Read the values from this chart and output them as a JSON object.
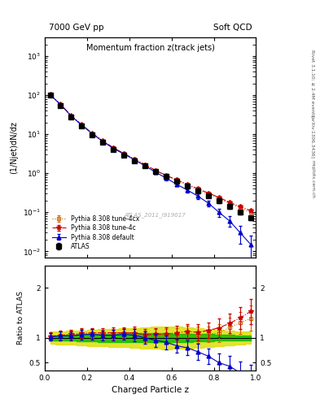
{
  "title_main": "Momentum fraction z(track jets)",
  "header_left": "7000 GeV pp",
  "header_right": "Soft QCD",
  "right_label1": "Rivet 3.1.10; ≥ 2.4M events",
  "right_label2": "[arXiv:1306.3436]",
  "right_label3": "mcplots.cern.ch",
  "watermark": "ATLAS_2011_I919017",
  "ylabel_main": "(1/Njet)dN/dz",
  "ylabel_ratio": "Ratio to ATLAS",
  "xlabel": "Charged Particle z",
  "xlim": [
    0,
    1.0
  ],
  "ylim_main": [
    0.007,
    3000
  ],
  "ylim_ratio": [
    0.35,
    2.45
  ],
  "ratio_yticks": [
    0.5,
    1.0,
    2.0
  ],
  "background_color": "#ffffff",
  "green_band_color": "#00bb00",
  "yellow_band_color": "#dddd00",
  "atlas_color": "#000000",
  "pythia_default_color": "#0000cc",
  "pythia_4c_color": "#cc0000",
  "pythia_4cx_color": "#cc6600",
  "atlas_x": [
    0.025,
    0.075,
    0.125,
    0.175,
    0.225,
    0.275,
    0.325,
    0.375,
    0.425,
    0.475,
    0.525,
    0.575,
    0.625,
    0.675,
    0.725,
    0.775,
    0.825,
    0.875,
    0.925,
    0.975
  ],
  "atlas_y": [
    100,
    55,
    28,
    16,
    9.5,
    6.2,
    4.1,
    2.9,
    2.1,
    1.55,
    1.1,
    0.82,
    0.62,
    0.46,
    0.36,
    0.27,
    0.2,
    0.14,
    0.1,
    0.072
  ],
  "atlas_yerr": [
    6,
    3.5,
    2,
    1.2,
    0.75,
    0.5,
    0.35,
    0.25,
    0.18,
    0.13,
    0.1,
    0.08,
    0.06,
    0.05,
    0.04,
    0.03,
    0.025,
    0.018,
    0.014,
    0.01
  ],
  "py_default_x": [
    0.025,
    0.075,
    0.125,
    0.175,
    0.225,
    0.275,
    0.325,
    0.375,
    0.425,
    0.475,
    0.525,
    0.575,
    0.625,
    0.675,
    0.725,
    0.775,
    0.825,
    0.875,
    0.925,
    0.975
  ],
  "py_default_y": [
    102,
    57,
    29,
    17,
    10.2,
    6.5,
    4.3,
    3.1,
    2.2,
    1.55,
    1.05,
    0.75,
    0.52,
    0.37,
    0.26,
    0.17,
    0.1,
    0.06,
    0.03,
    0.015
  ],
  "py_default_yerr": [
    6,
    3.5,
    2,
    1.2,
    0.75,
    0.5,
    0.35,
    0.25,
    0.18,
    0.13,
    0.1,
    0.08,
    0.06,
    0.05,
    0.04,
    0.03,
    0.025,
    0.018,
    0.014,
    0.01
  ],
  "py_4c_x": [
    0.025,
    0.075,
    0.125,
    0.175,
    0.225,
    0.275,
    0.325,
    0.375,
    0.425,
    0.475,
    0.525,
    0.575,
    0.625,
    0.675,
    0.725,
    0.775,
    0.825,
    0.875,
    0.925,
    0.975
  ],
  "py_4c_y": [
    103,
    58,
    30,
    17.5,
    10.5,
    6.8,
    4.5,
    3.2,
    2.3,
    1.65,
    1.18,
    0.88,
    0.68,
    0.52,
    0.4,
    0.31,
    0.24,
    0.18,
    0.14,
    0.11
  ],
  "py_4c_yerr": [
    6,
    3.5,
    2,
    1.2,
    0.75,
    0.5,
    0.35,
    0.25,
    0.18,
    0.13,
    0.1,
    0.08,
    0.06,
    0.05,
    0.04,
    0.03,
    0.025,
    0.018,
    0.014,
    0.01
  ],
  "py_4cx_x": [
    0.025,
    0.075,
    0.125,
    0.175,
    0.225,
    0.275,
    0.325,
    0.375,
    0.425,
    0.475,
    0.525,
    0.575,
    0.625,
    0.675,
    0.725,
    0.775,
    0.825,
    0.875,
    0.925,
    0.975
  ],
  "py_4cx_y": [
    102,
    57,
    29.5,
    17.2,
    10.3,
    6.6,
    4.4,
    3.15,
    2.25,
    1.6,
    1.15,
    0.85,
    0.65,
    0.5,
    0.38,
    0.29,
    0.22,
    0.17,
    0.13,
    0.1
  ],
  "py_4cx_yerr": [
    6,
    3.5,
    2,
    1.2,
    0.75,
    0.5,
    0.35,
    0.25,
    0.18,
    0.13,
    0.1,
    0.08,
    0.06,
    0.05,
    0.04,
    0.03,
    0.025,
    0.018,
    0.014,
    0.01
  ],
  "green_band_lo": [
    0.95,
    0.95,
    0.94,
    0.93,
    0.93,
    0.92,
    0.92,
    0.91,
    0.91,
    0.91,
    0.91,
    0.91,
    0.92,
    0.92,
    0.93,
    0.93,
    0.94,
    0.94,
    0.95,
    0.95
  ],
  "green_band_hi": [
    1.05,
    1.05,
    1.06,
    1.07,
    1.07,
    1.08,
    1.08,
    1.09,
    1.09,
    1.09,
    1.09,
    1.09,
    1.08,
    1.08,
    1.07,
    1.07,
    1.06,
    1.06,
    1.05,
    1.05
  ],
  "yellow_band_lo": [
    0.88,
    0.87,
    0.86,
    0.85,
    0.84,
    0.83,
    0.82,
    0.81,
    0.8,
    0.79,
    0.78,
    0.77,
    0.78,
    0.79,
    0.8,
    0.82,
    0.84,
    0.85,
    0.87,
    0.88
  ],
  "yellow_band_hi": [
    1.12,
    1.13,
    1.14,
    1.15,
    1.16,
    1.17,
    1.18,
    1.19,
    1.2,
    1.21,
    1.22,
    1.23,
    1.22,
    1.21,
    1.2,
    1.18,
    1.16,
    1.15,
    1.13,
    1.12
  ],
  "ratio_def": [
    1.02,
    1.04,
    1.04,
    1.06,
    1.07,
    1.05,
    1.05,
    1.07,
    1.05,
    1.0,
    0.95,
    0.91,
    0.84,
    0.8,
    0.72,
    0.63,
    0.5,
    0.43,
    0.3,
    0.21
  ],
  "ratio_def_err": [
    0.08,
    0.09,
    0.09,
    0.1,
    0.1,
    0.1,
    0.11,
    0.11,
    0.12,
    0.12,
    0.13,
    0.14,
    0.14,
    0.15,
    0.16,
    0.16,
    0.18,
    0.2,
    0.22,
    0.25
  ],
  "ratio_4c": [
    1.03,
    1.05,
    1.07,
    1.09,
    1.1,
    1.1,
    1.1,
    1.1,
    1.1,
    1.06,
    1.07,
    1.07,
    1.1,
    1.13,
    1.11,
    1.15,
    1.2,
    1.29,
    1.4,
    1.53
  ],
  "ratio_4c_err": [
    0.08,
    0.09,
    0.09,
    0.1,
    0.1,
    0.1,
    0.11,
    0.11,
    0.12,
    0.12,
    0.13,
    0.14,
    0.14,
    0.15,
    0.16,
    0.16,
    0.18,
    0.2,
    0.22,
    0.25
  ],
  "ratio_4cx": [
    1.02,
    1.04,
    1.05,
    1.08,
    1.08,
    1.06,
    1.07,
    1.09,
    1.07,
    1.03,
    1.05,
    1.04,
    1.05,
    1.09,
    1.06,
    1.07,
    1.1,
    1.21,
    1.3,
    1.39
  ],
  "ratio_4cx_err": [
    0.08,
    0.09,
    0.09,
    0.1,
    0.1,
    0.1,
    0.11,
    0.11,
    0.12,
    0.12,
    0.13,
    0.14,
    0.14,
    0.15,
    0.16,
    0.16,
    0.18,
    0.2,
    0.22,
    0.25
  ],
  "legend_labels": [
    "ATLAS",
    "Pythia 8.308 default",
    "Pythia 8.308 tune-4c",
    "Pythia 8.308 tune-4cx"
  ]
}
